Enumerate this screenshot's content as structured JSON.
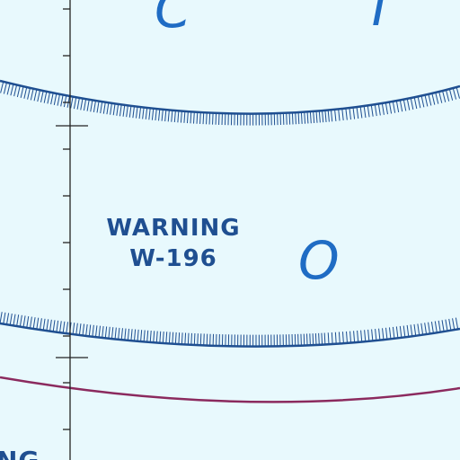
{
  "colors": {
    "background": "#e8f9fd",
    "boundary": "#1f4f91",
    "route": "#8b2a5e",
    "letters": "#1f6cc4",
    "grid_line": "#222222"
  },
  "warning_area": {
    "title": "WARNING",
    "designator": "W-196"
  },
  "big_letters": {
    "top_left": "C",
    "top_right": "T",
    "center": "O"
  },
  "partial_label": "NG"
}
